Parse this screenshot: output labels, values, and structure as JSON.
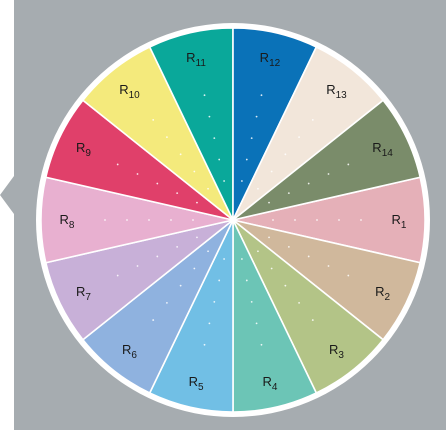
{
  "diagram": {
    "background_color": "#a6acb0",
    "rim_color": "#ffffff",
    "segments": [
      {
        "label_base": "R",
        "label_sub": "1",
        "color": "#e5b0b8"
      },
      {
        "label_base": "R",
        "label_sub": "2",
        "color": "#d0b89c"
      },
      {
        "label_base": "R",
        "label_sub": "3",
        "color": "#b3c487"
      },
      {
        "label_base": "R",
        "label_sub": "4",
        "color": "#6cc5b6"
      },
      {
        "label_base": "R",
        "label_sub": "5",
        "color": "#71bfe5"
      },
      {
        "label_base": "R",
        "label_sub": "6",
        "color": "#8fb2df"
      },
      {
        "label_base": "R",
        "label_sub": "7",
        "color": "#c8b0d8"
      },
      {
        "label_base": "R",
        "label_sub": "8",
        "color": "#e8b0d0"
      },
      {
        "label_base": "R",
        "label_sub": "9",
        "color": "#e0406a"
      },
      {
        "label_base": "R",
        "label_sub": "10",
        "color": "#f4ea7c"
      },
      {
        "label_base": "R",
        "label_sub": "11",
        "color": "#0aa89a"
      },
      {
        "label_base": "R",
        "label_sub": "12",
        "color": "#0a72b8"
      },
      {
        "label_base": "R",
        "label_sub": "13",
        "color": "#f2e6da"
      },
      {
        "label_base": "R",
        "label_sub": "14",
        "color": "#7a8c6a"
      }
    ]
  }
}
